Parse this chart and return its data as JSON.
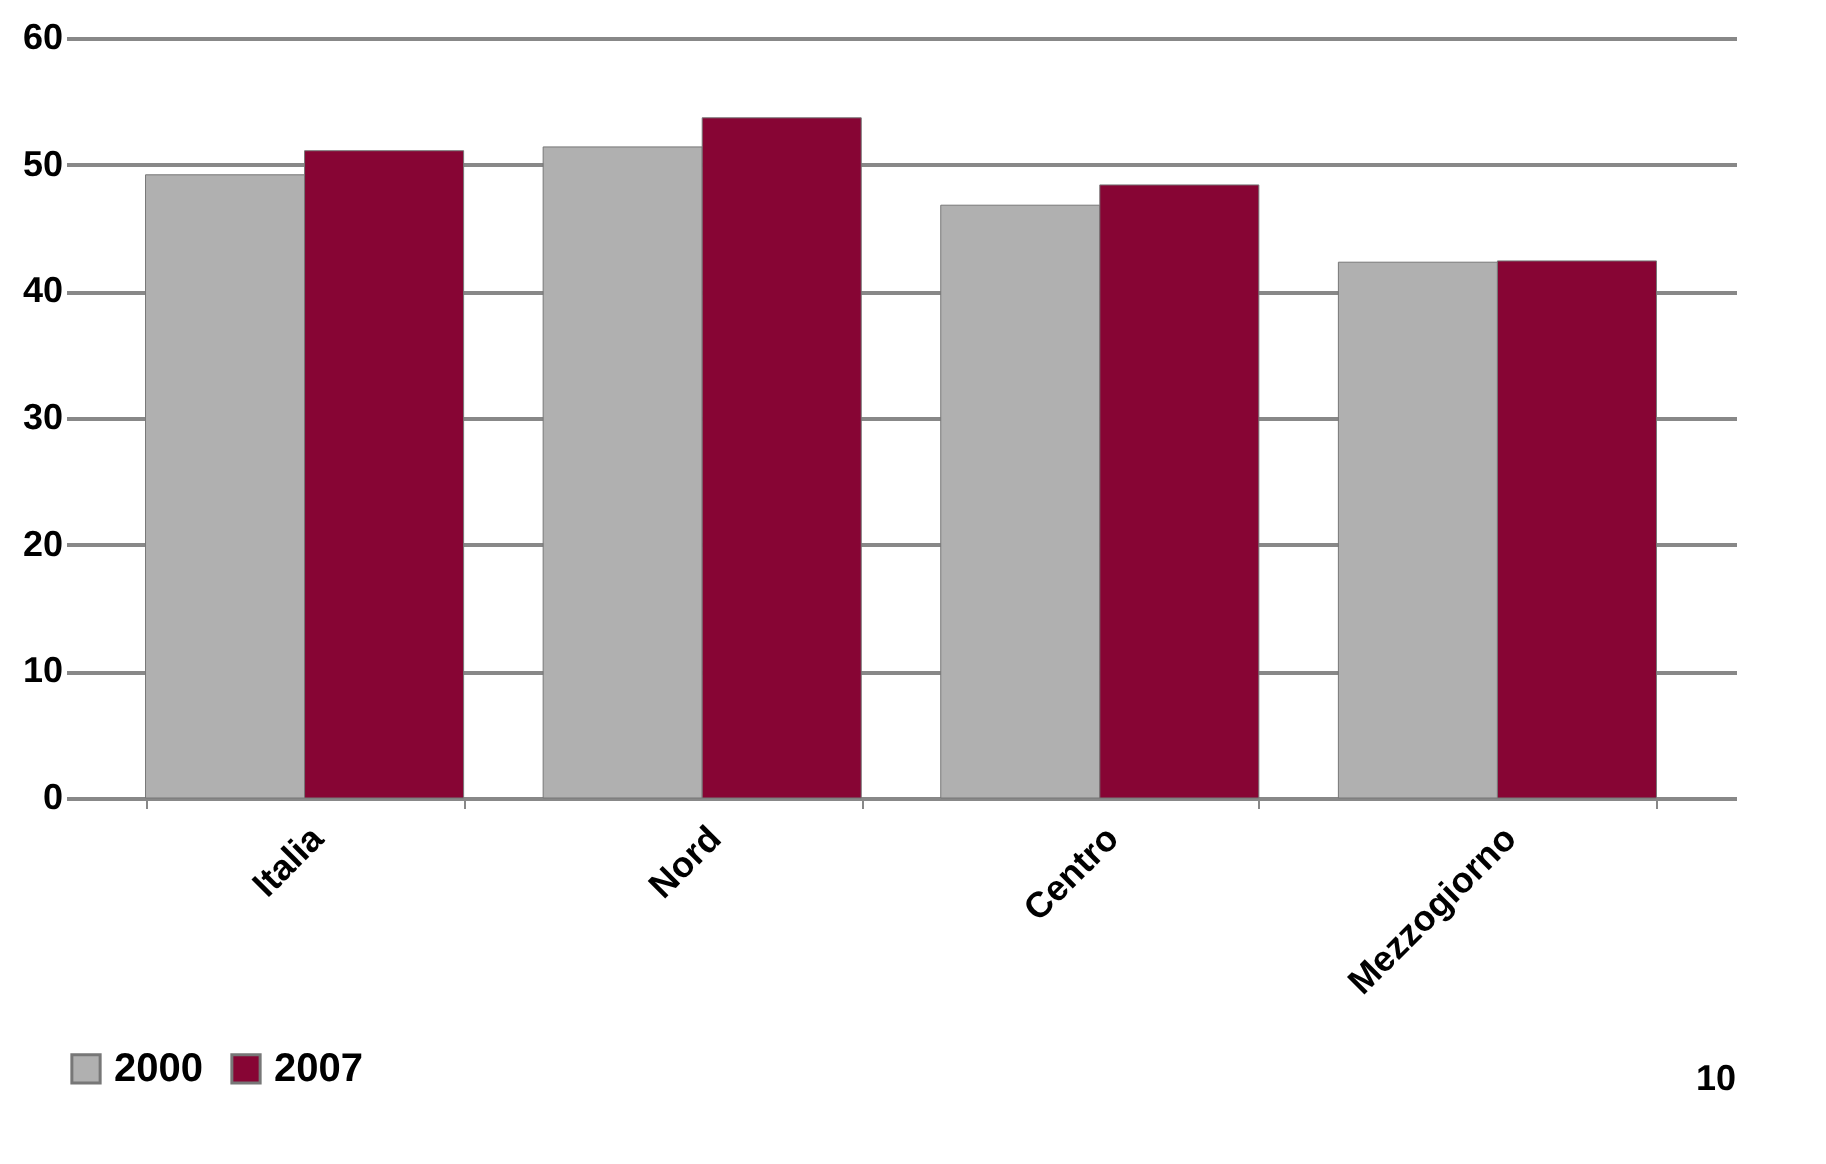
{
  "chart_data": {
    "type": "bar",
    "categories": [
      "Italia",
      "Nord",
      "Centro",
      "Mezzogiorno"
    ],
    "series": [
      {
        "name": "2000",
        "color": "#b0b0b0",
        "values": [
          49.2,
          51.4,
          46.8,
          42.3
        ]
      },
      {
        "name": "2007",
        "color": "#870534",
        "values": [
          51.1,
          53.7,
          48.4,
          42.4
        ]
      }
    ],
    "ylim": [
      0,
      60
    ],
    "yticks": [
      0,
      10,
      20,
      30,
      40,
      50,
      60
    ],
    "grid": "y",
    "legend": "bottom left",
    "annotations": [
      "10"
    ]
  }
}
